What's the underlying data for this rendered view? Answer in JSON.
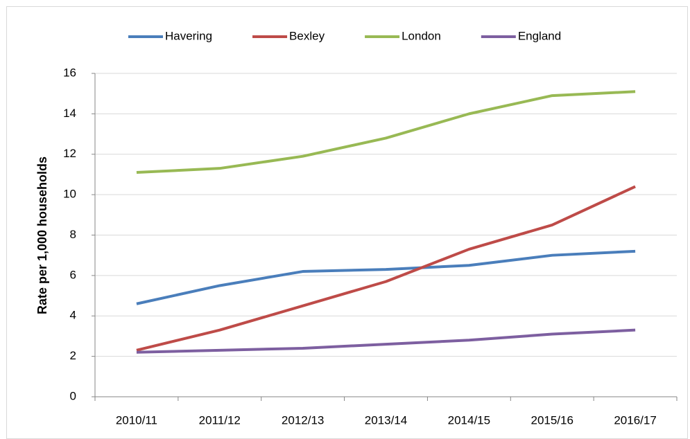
{
  "chart_data": {
    "type": "line",
    "y_label": "Rate per 1,000 households",
    "categories": [
      "2010/11",
      "2011/12",
      "2012/13",
      "2013/14",
      "2014/15",
      "2015/16",
      "2016/17"
    ],
    "series": [
      {
        "name": "Havering",
        "color": "#4a7ebb",
        "values": [
          4.6,
          5.5,
          6.2,
          6.3,
          6.5,
          7.0,
          7.2
        ]
      },
      {
        "name": "Bexley",
        "color": "#be4b48",
        "values": [
          2.3,
          3.3,
          4.5,
          5.7,
          7.3,
          8.5,
          10.4
        ]
      },
      {
        "name": "London",
        "color": "#98b954",
        "values": [
          11.1,
          11.3,
          11.9,
          12.8,
          14.0,
          14.9,
          15.1
        ]
      },
      {
        "name": "England",
        "color": "#7d5fa0",
        "values": [
          2.2,
          2.3,
          2.4,
          2.6,
          2.8,
          3.1,
          3.3
        ]
      }
    ],
    "ylim": [
      0,
      16
    ],
    "yticks": [
      0,
      2,
      4,
      6,
      8,
      10,
      12,
      14,
      16
    ],
    "grid": true,
    "legend": "top"
  }
}
